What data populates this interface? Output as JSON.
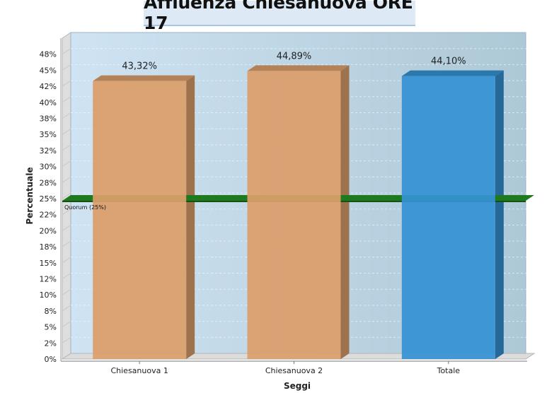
{
  "chart_data": {
    "type": "bar",
    "title": "Affluenza Chiesanuova ORE 17",
    "xlabel": "Seggi",
    "ylabel": "Percentuale",
    "categories": [
      "Chiesanuova 1",
      "Chiesanuova 2",
      "Totale"
    ],
    "values": [
      43.32,
      44.89,
      44.1
    ],
    "value_labels": [
      "43,32%",
      "44,89%",
      "44,10%"
    ],
    "bar_colors": [
      "#dc9e6b",
      "#dc9e6b",
      "#3592d3"
    ],
    "ylim": [
      0,
      50
    ],
    "yticks": [
      {
        "v": 0,
        "label": "0%"
      },
      {
        "v": 2.5,
        "label": "2%"
      },
      {
        "v": 5,
        "label": "5%"
      },
      {
        "v": 7.5,
        "label": "8%"
      },
      {
        "v": 10,
        "label": "10%"
      },
      {
        "v": 12.5,
        "label": "12%"
      },
      {
        "v": 15,
        "label": "15%"
      },
      {
        "v": 17.5,
        "label": "18%"
      },
      {
        "v": 20,
        "label": "20%"
      },
      {
        "v": 22.5,
        "label": "22%"
      },
      {
        "v": 25,
        "label": "25%"
      },
      {
        "v": 27.5,
        "label": "28%"
      },
      {
        "v": 30,
        "label": "30%"
      },
      {
        "v": 32.5,
        "label": "32%"
      },
      {
        "v": 35,
        "label": "35%"
      },
      {
        "v": 37.5,
        "label": "38%"
      },
      {
        "v": 40,
        "label": "40%"
      },
      {
        "v": 42.5,
        "label": "42%"
      },
      {
        "v": 45,
        "label": "45%"
      },
      {
        "v": 47.5,
        "label": "48%"
      }
    ],
    "quorum": {
      "value": 25,
      "label": "Quorum (25%)",
      "color": "#1f7a1f"
    },
    "grid": true,
    "legend": "none"
  }
}
